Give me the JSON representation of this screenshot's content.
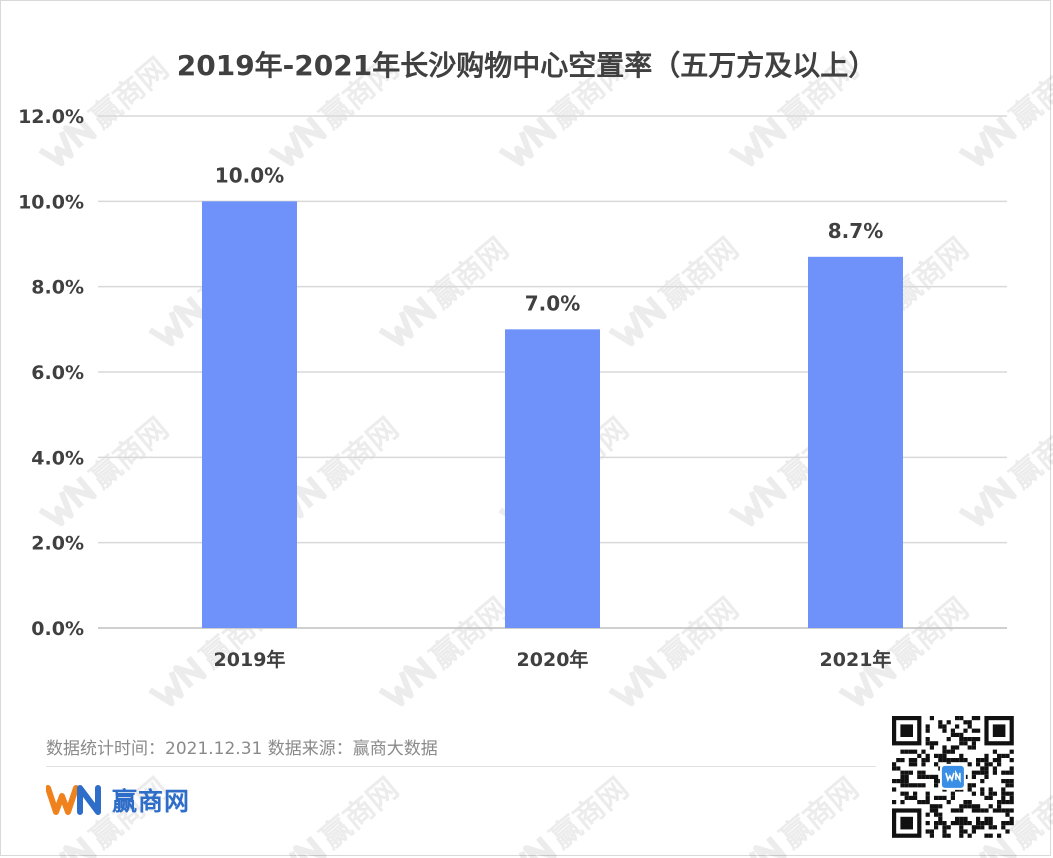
{
  "chart_data": {
    "type": "bar",
    "title": "2019年-2021年长沙购物中心空置率（五万方及以上）",
    "categories": [
      "2019年",
      "2020年",
      "2021年"
    ],
    "values": [
      10.0,
      7.0,
      8.7
    ],
    "data_labels": [
      "10.0%",
      "7.0%",
      "8.7%"
    ],
    "ylim": [
      0,
      12
    ],
    "yticks": [
      "0.0%",
      "2.0%",
      "4.0%",
      "6.0%",
      "8.0%",
      "10.0%",
      "12.0%"
    ],
    "xlabel": "",
    "ylabel": "",
    "grid": true,
    "legend": "none",
    "bar_color": "#6e91fa"
  },
  "footer": {
    "note": "数据统计时间：2021.12.31  数据来源：赢商大数据",
    "brand_name": "赢商网",
    "brand_color": "#2f6ec8"
  },
  "watermark": {
    "text": "赢商网"
  }
}
